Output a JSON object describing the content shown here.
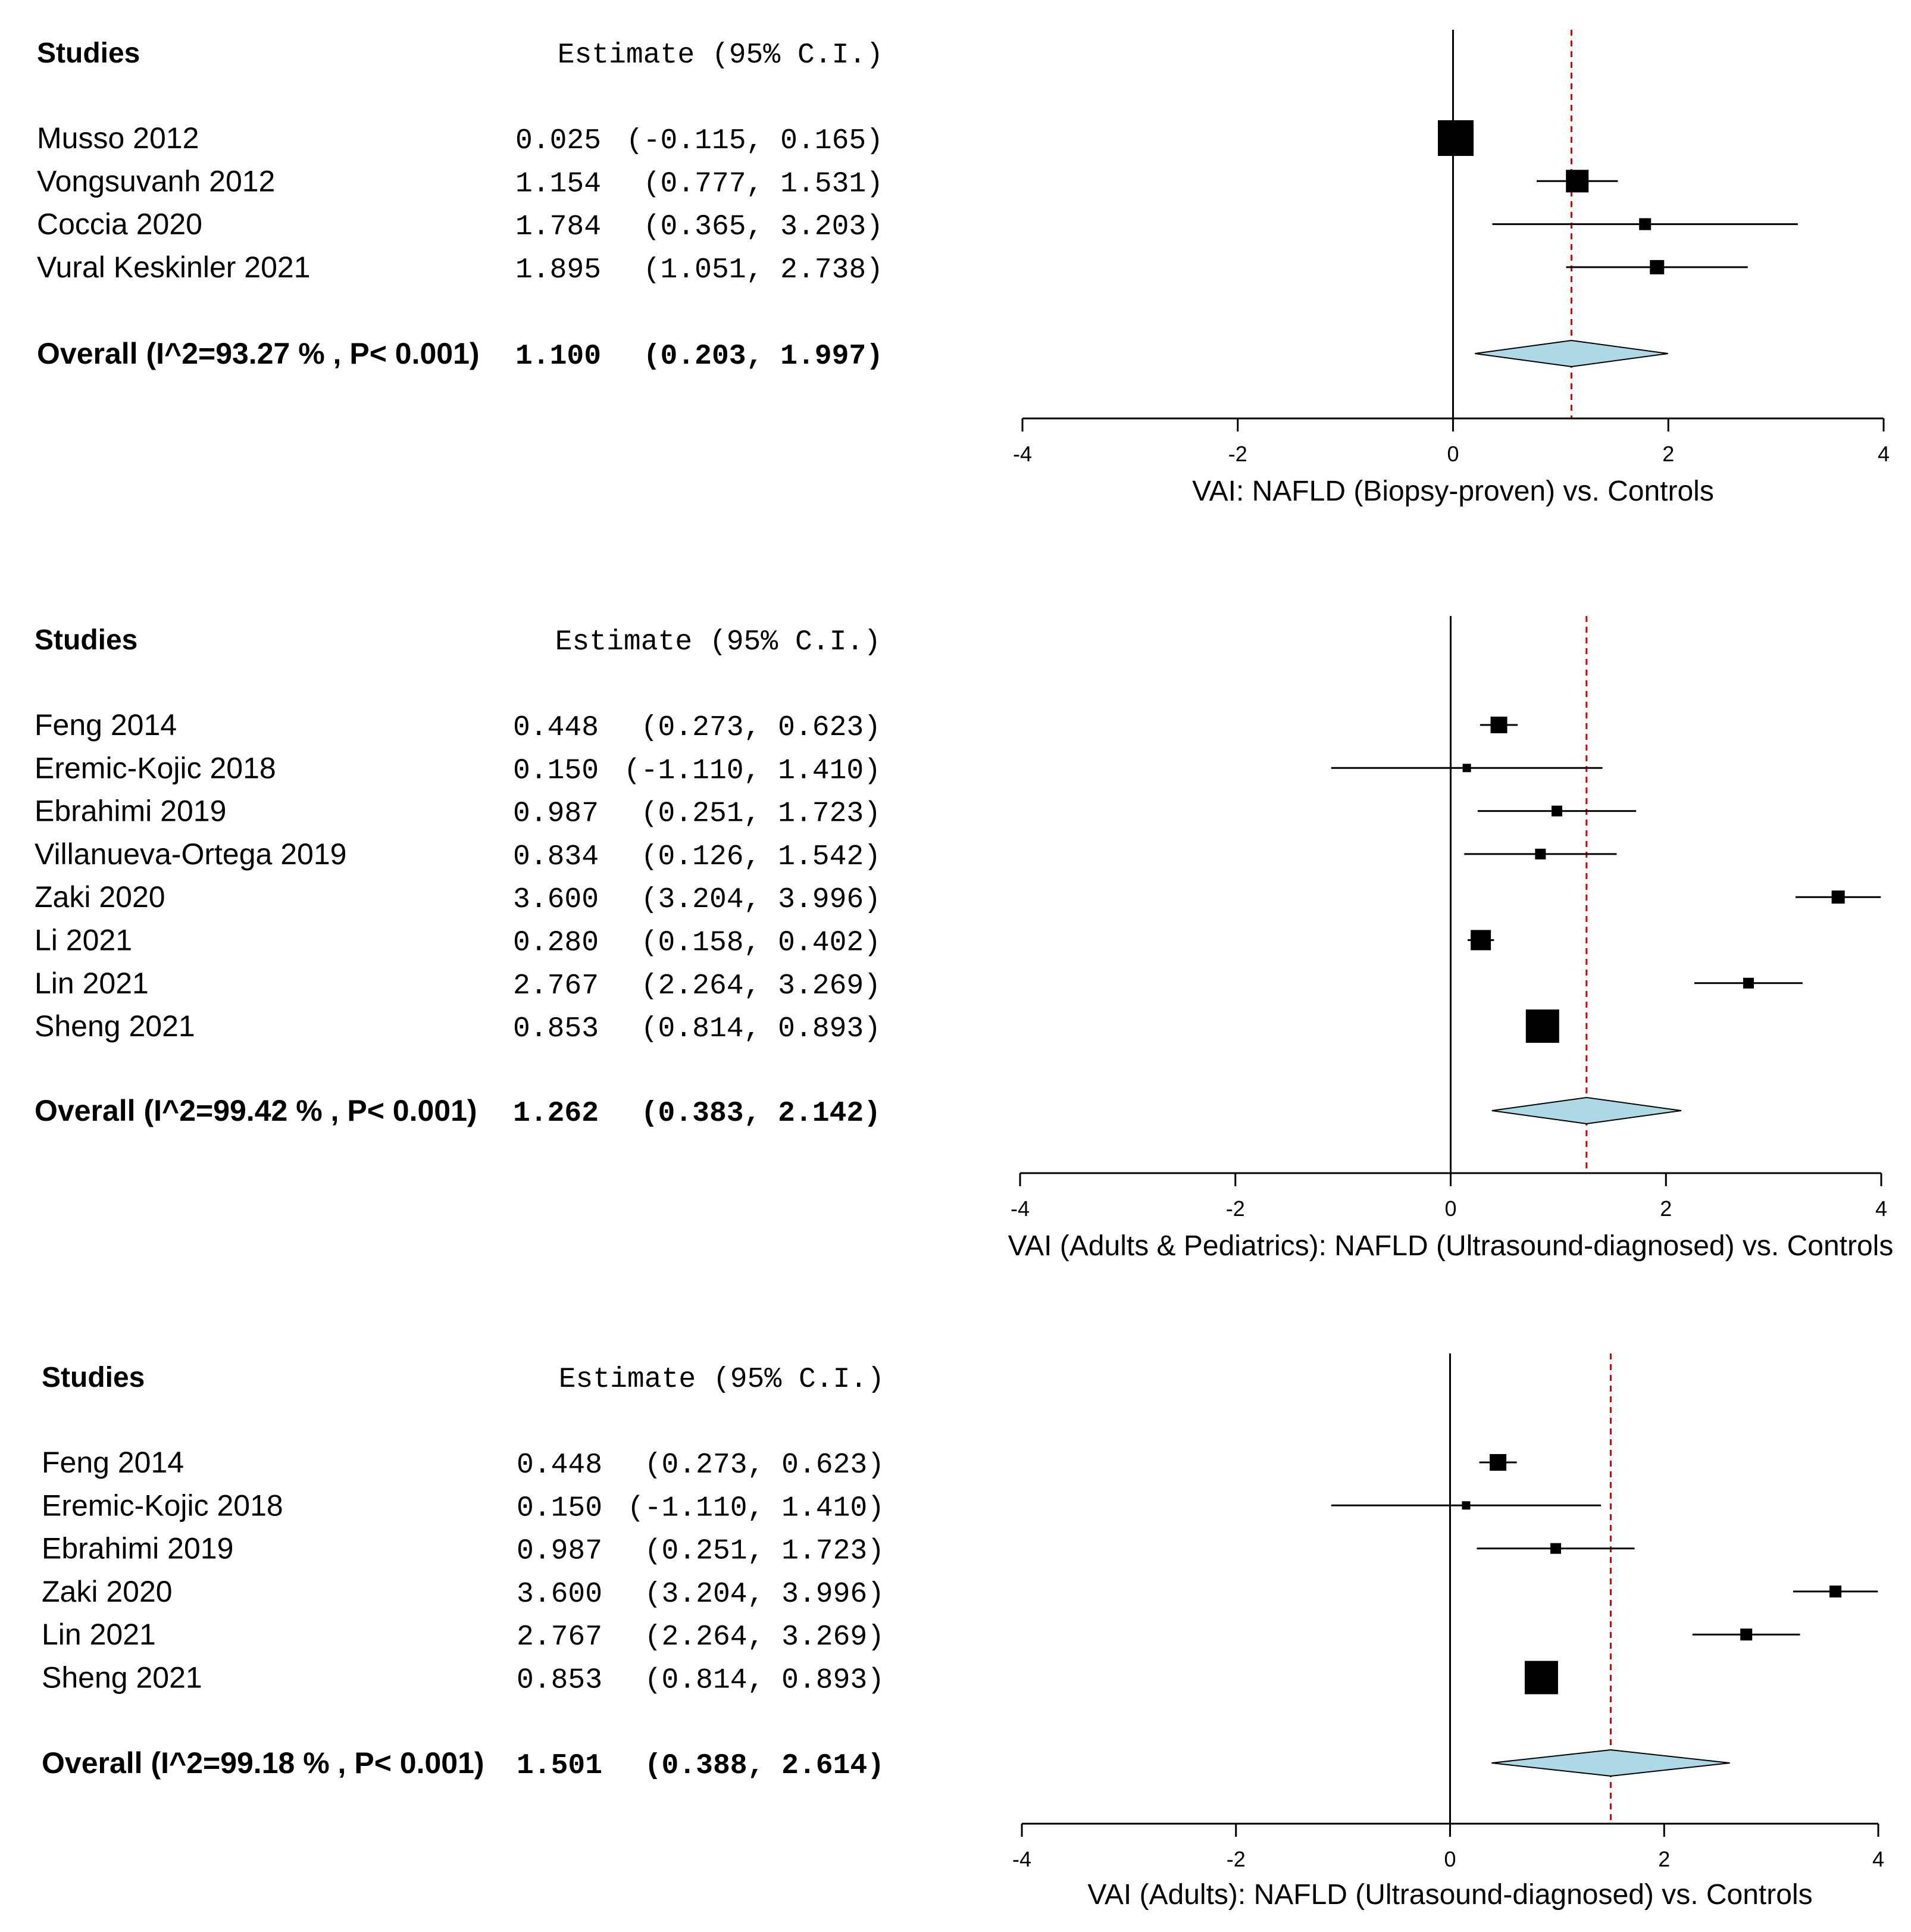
{
  "chart_data": [
    {
      "type": "forest",
      "headers": {
        "studies": "Studies",
        "estimate": "Estimate (95% C.I.)"
      },
      "xlabel": "VAI: NAFLD (Biopsy-proven) vs. Controls",
      "xlim": [
        -4,
        4
      ],
      "ticks": [
        "-4",
        "-2",
        "0",
        "2",
        "4"
      ],
      "studies": [
        {
          "name": "Musso 2012",
          "est": 0.025,
          "lo": -0.115,
          "hi": 0.165,
          "est_text": "0.025",
          "ci_text": "(-0.115, 0.165)",
          "weight": 3.0
        },
        {
          "name": "Vongsuvanh 2012",
          "est": 1.154,
          "lo": 0.777,
          "hi": 1.531,
          "est_text": "1.154",
          "ci_text": "(0.777, 1.531)",
          "weight": 1.9
        },
        {
          "name": "Coccia 2020",
          "est": 1.784,
          "lo": 0.365,
          "hi": 3.203,
          "est_text": "1.784",
          "ci_text": "(0.365, 3.203)",
          "weight": 1.0
        },
        {
          "name": "Vural Keskinler 2021",
          "est": 1.895,
          "lo": 1.051,
          "hi": 2.738,
          "est_text": "1.895",
          "ci_text": "(1.051, 2.738)",
          "weight": 1.2
        }
      ],
      "overall": {
        "label": "Overall (I^2=93.27 % , P< 0.001)",
        "est": 1.1,
        "lo": 0.203,
        "hi": 1.997,
        "est_text": "1.100",
        "ci_text": "(0.203, 1.997)"
      }
    },
    {
      "type": "forest",
      "headers": {
        "studies": "Studies",
        "estimate": "Estimate (95% C.I.)"
      },
      "xlabel": "VAI (Adults & Pediatrics): NAFLD (Ultrasound-diagnosed) vs. Controls",
      "xlim": [
        -4,
        4
      ],
      "ticks": [
        "-4",
        "-2",
        "0",
        "2",
        "4"
      ],
      "studies": [
        {
          "name": "Feng 2014",
          "est": 0.448,
          "lo": 0.273,
          "hi": 0.623,
          "est_text": "0.448",
          "ci_text": "(0.273, 0.623)",
          "weight": 1.4
        },
        {
          "name": "Eremic-Kojic 2018",
          "est": 0.15,
          "lo": -1.11,
          "hi": 1.41,
          "est_text": "0.150",
          "ci_text": "(-1.110, 1.410)",
          "weight": 0.7
        },
        {
          "name": "Ebrahimi 2019",
          "est": 0.987,
          "lo": 0.251,
          "hi": 1.723,
          "est_text": "0.987",
          "ci_text": "(0.251, 1.723)",
          "weight": 0.9
        },
        {
          "name": "Villanueva-Ortega 2019",
          "est": 0.834,
          "lo": 0.126,
          "hi": 1.542,
          "est_text": "0.834",
          "ci_text": "(0.126, 1.542)",
          "weight": 0.9
        },
        {
          "name": "Zaki 2020",
          "est": 3.6,
          "lo": 3.204,
          "hi": 3.996,
          "est_text": "3.600",
          "ci_text": "(3.204, 3.996)",
          "weight": 1.1
        },
        {
          "name": "Li 2021",
          "est": 0.28,
          "lo": 0.158,
          "hi": 0.402,
          "est_text": "0.280",
          "ci_text": "(0.158, 0.402)",
          "weight": 1.7
        },
        {
          "name": "Lin 2021",
          "est": 2.767,
          "lo": 2.264,
          "hi": 3.269,
          "est_text": "2.767",
          "ci_text": "(2.264, 3.269)",
          "weight": 0.9
        },
        {
          "name": "Sheng 2021",
          "est": 0.853,
          "lo": 0.814,
          "hi": 0.893,
          "est_text": "0.853",
          "ci_text": "(0.814, 0.893)",
          "weight": 2.8
        }
      ],
      "overall": {
        "label": "Overall (I^2=99.42 % , P< 0.001)",
        "est": 1.262,
        "lo": 0.383,
        "hi": 2.142,
        "est_text": "1.262",
        "ci_text": "(0.383, 2.142)"
      }
    },
    {
      "type": "forest",
      "headers": {
        "studies": "Studies",
        "estimate": "Estimate (95% C.I.)"
      },
      "xlabel": "VAI (Adults): NAFLD (Ultrasound-diagnosed) vs. Controls",
      "xlim": [
        -4,
        4
      ],
      "ticks": [
        "-4",
        "-2",
        "0",
        "2",
        "4"
      ],
      "studies": [
        {
          "name": "Feng 2014",
          "est": 0.448,
          "lo": 0.273,
          "hi": 0.623,
          "est_text": "0.448",
          "ci_text": "(0.273, 0.623)",
          "weight": 1.4
        },
        {
          "name": "Eremic-Kojic 2018",
          "est": 0.15,
          "lo": -1.11,
          "hi": 1.41,
          "est_text": "0.150",
          "ci_text": "(-1.110, 1.410)",
          "weight": 0.7
        },
        {
          "name": "Ebrahimi 2019",
          "est": 0.987,
          "lo": 0.251,
          "hi": 1.723,
          "est_text": "0.987",
          "ci_text": "(0.251, 1.723)",
          "weight": 0.9
        },
        {
          "name": "Zaki 2020",
          "est": 3.6,
          "lo": 3.204,
          "hi": 3.996,
          "est_text": "3.600",
          "ci_text": "(3.204, 3.996)",
          "weight": 1.0
        },
        {
          "name": "Lin 2021",
          "est": 2.767,
          "lo": 2.264,
          "hi": 3.269,
          "est_text": "2.767",
          "ci_text": "(2.264, 3.269)",
          "weight": 1.0
        },
        {
          "name": "Sheng 2021",
          "est": 0.853,
          "lo": 0.814,
          "hi": 0.893,
          "est_text": "0.853",
          "ci_text": "(0.814, 0.893)",
          "weight": 2.8
        }
      ],
      "overall": {
        "label": "Overall (I^2=99.18 % , P< 0.001)",
        "est": 1.501,
        "lo": 0.388,
        "hi": 2.614,
        "est_text": "1.501",
        "ci_text": "(0.388, 2.614)"
      }
    }
  ],
  "colors": {
    "ink": "#000000",
    "reference_line": "#e00000",
    "diamond_fill": "#add8e6"
  }
}
